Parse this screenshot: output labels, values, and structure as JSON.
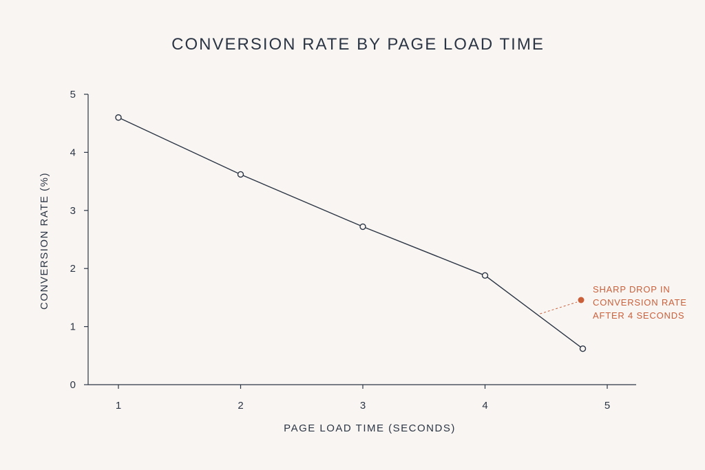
{
  "chart_data": {
    "type": "line",
    "title": "CONVERSION RATE BY PAGE LOAD TIME",
    "xlabel": "PAGE LOAD TIME (SECONDS)",
    "ylabel": "CONVERSION RATE (%)",
    "xlim": [
      0.75,
      5.25
    ],
    "ylim": [
      0,
      5
    ],
    "x_ticks": [
      1,
      2,
      3,
      4,
      5
    ],
    "y_ticks": [
      0,
      1,
      2,
      3,
      4,
      5
    ],
    "grid": false,
    "series": [
      {
        "x": [
          1,
          2,
          3,
          4,
          4.8
        ],
        "y": [
          4.6,
          3.62,
          2.72,
          1.88,
          0.62
        ]
      }
    ],
    "annotation": {
      "lines": [
        "SHARP DROP IN",
        "CONVERSION RATE",
        "AFTER 4 SECONDS"
      ],
      "target_x": 4.45,
      "target_y": 1.22,
      "color": "#c9603a"
    }
  }
}
